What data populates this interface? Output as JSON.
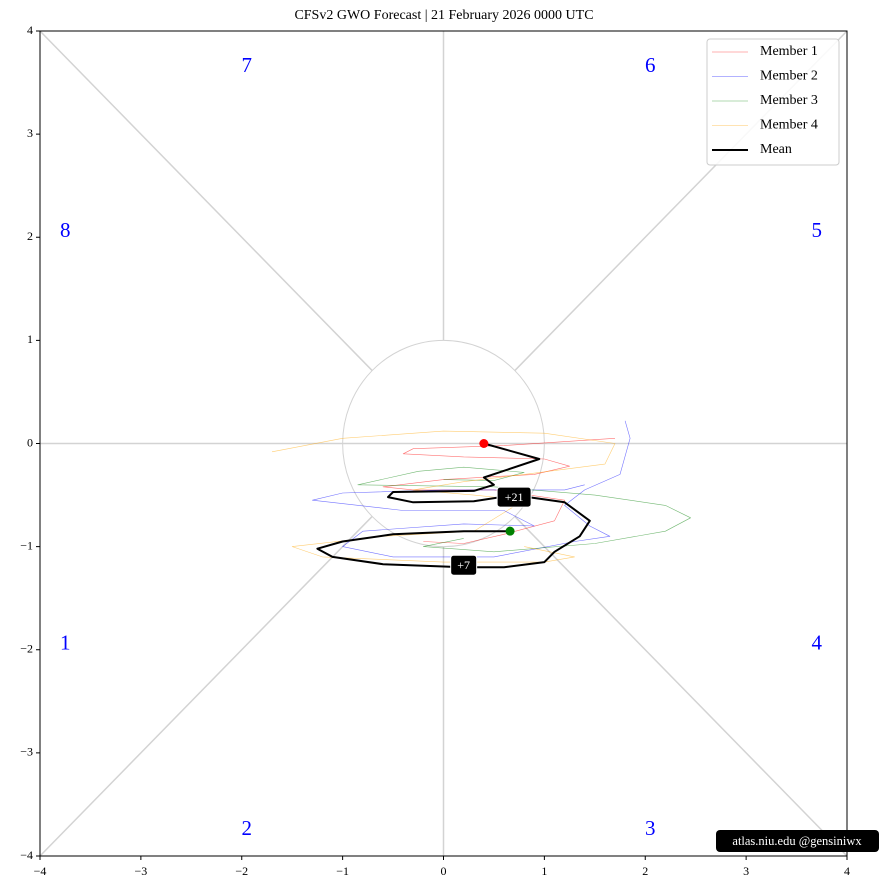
{
  "chart_data": {
    "type": "phase",
    "title": "CFSv2 GWO Forecast  |  21  February  2026 0000 UTC",
    "xlim": [
      -4,
      4
    ],
    "ylim": [
      -4,
      4
    ],
    "xticks": [
      {
        "value": -4,
        "label": "−4"
      },
      {
        "value": -3,
        "label": "−3"
      },
      {
        "value": -2,
        "label": "−2"
      },
      {
        "value": -1,
        "label": "−1"
      },
      0,
      1,
      2,
      3,
      4
    ],
    "yticks": [
      {
        "value": -4,
        "label": "−4"
      },
      {
        "value": -3,
        "label": "−3"
      },
      {
        "value": -2,
        "label": "−2"
      },
      {
        "value": -1,
        "label": "−1"
      },
      0,
      1,
      2,
      3,
      4
    ],
    "legend": "upper right",
    "phase_labels": [
      "1",
      "2",
      "3",
      "4",
      "5",
      "6",
      "7",
      "8"
    ],
    "phase_label_color": "blue",
    "annotations": [
      "+7",
      "+21"
    ],
    "watermark": "atlas.niu.edu  @gensiniwx",
    "start_color": "red",
    "end_color": "green",
    "series": [
      {
        "name": "Member 1",
        "color": "red",
        "x": [
          1.7,
          0.6,
          -0.3,
          -0.4,
          0.2,
          1.0,
          1.25,
          0.9,
          0.0,
          -0.6,
          -0.3,
          0.5,
          1.2,
          1.1,
          0.6,
          0.2,
          -0.2
        ],
        "y": [
          0.05,
          -0.02,
          -0.05,
          -0.1,
          -0.13,
          -0.15,
          -0.22,
          -0.3,
          -0.35,
          -0.42,
          -0.45,
          -0.45,
          -0.55,
          -0.75,
          -0.88,
          -0.97,
          -0.95
        ]
      },
      {
        "name": "Member 2",
        "color": "blue",
        "x": [
          1.8,
          1.85,
          1.75,
          1.4,
          1.2,
          1.45,
          1.65,
          1.3,
          0.5,
          -0.5,
          -1.0,
          -0.8,
          0.2,
          0.9,
          0.6,
          -0.4,
          -1.3,
          -1.0,
          0.0,
          1.2,
          1.4
        ],
        "y": [
          0.22,
          0.05,
          -0.3,
          -0.45,
          -0.6,
          -0.8,
          -0.9,
          -0.95,
          -1.1,
          -1.1,
          -1.0,
          -0.85,
          -0.78,
          -0.8,
          -0.65,
          -0.65,
          -0.55,
          -0.48,
          -0.45,
          -0.45,
          -0.4
        ]
      },
      {
        "name": "Member 3",
        "color": "green",
        "x": [
          0.0,
          0.5,
          0.8,
          0.2,
          -0.25,
          -0.85,
          0.5,
          1.5,
          2.2,
          2.45,
          2.2,
          1.5,
          0.5,
          -0.2,
          0.2
        ],
        "y": [
          -0.35,
          -0.36,
          -0.28,
          -0.23,
          -0.27,
          -0.4,
          -0.42,
          -0.5,
          -0.6,
          -0.72,
          -0.85,
          -0.97,
          -1.05,
          -1.0,
          -0.92
        ]
      },
      {
        "name": "Member 4",
        "color": "orange",
        "x": [
          -1.7,
          -1.0,
          0.0,
          1.0,
          1.7,
          1.6,
          0.8,
          0.2,
          -0.3,
          0.3,
          0.8,
          0.3,
          -0.6,
          -1.5,
          -1.2,
          0.0,
          1.0,
          1.3,
          0.8
        ],
        "y": [
          -0.08,
          0.05,
          0.12,
          0.1,
          0.0,
          -0.2,
          -0.3,
          -0.37,
          -0.45,
          -0.5,
          -0.55,
          -0.85,
          -0.9,
          -1.0,
          -1.1,
          -1.15,
          -1.15,
          -1.1,
          -1.0
        ]
      },
      {
        "name": "Mean",
        "color": "black",
        "x": [
          0.4,
          0.95,
          0.4,
          0.5,
          0.3,
          -0.5,
          -0.55,
          -0.3,
          0.3,
          0.7,
          1.2,
          1.45,
          1.35,
          1.1,
          1.0,
          0.6,
          0.2,
          -0.6,
          -1.1,
          -1.25,
          -1.0,
          -0.5,
          0.2,
          0.66
        ],
        "y": [
          0.0,
          -0.15,
          -0.33,
          -0.4,
          -0.46,
          -0.47,
          -0.52,
          -0.57,
          -0.56,
          -0.5,
          -0.57,
          -0.75,
          -0.9,
          -1.05,
          -1.15,
          -1.2,
          -1.2,
          -1.17,
          -1.1,
          -1.02,
          -0.95,
          -0.88,
          -0.85,
          -0.85
        ]
      }
    ]
  }
}
